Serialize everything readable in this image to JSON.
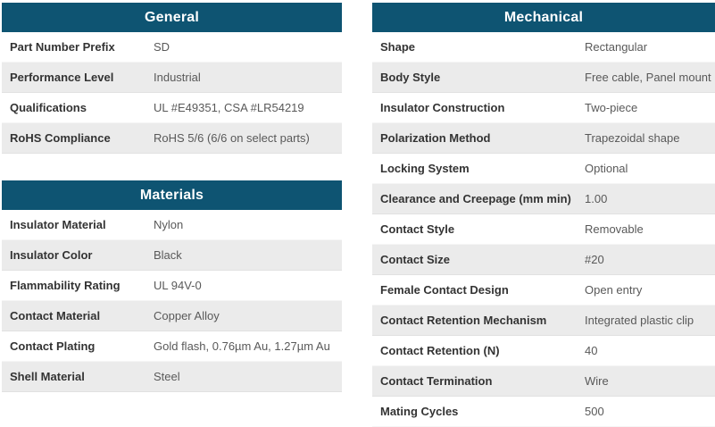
{
  "colors": {
    "header_bg": "#0e5472",
    "header_text": "#ffffff",
    "alt_row_bg": "#ebebeb",
    "label_color": "#333333",
    "value_color": "#595959"
  },
  "tables": {
    "general": {
      "title": "General",
      "rows": [
        {
          "label": "Part Number Prefix",
          "value": "SD"
        },
        {
          "label": "Performance Level",
          "value": "Industrial"
        },
        {
          "label": "Qualifications",
          "value": "UL #E49351, CSA #LR54219"
        },
        {
          "label": "RoHS Compliance",
          "value": "RoHS 5/6 (6/6 on select parts)"
        }
      ]
    },
    "materials": {
      "title": "Materials",
      "rows": [
        {
          "label": "Insulator Material",
          "value": "Nylon"
        },
        {
          "label": "Insulator Color",
          "value": "Black"
        },
        {
          "label": "Flammability Rating",
          "value": "UL 94V-0"
        },
        {
          "label": "Contact Material",
          "value": "Copper Alloy"
        },
        {
          "label": "Contact Plating",
          "value": "Gold flash, 0.76µm Au, 1.27µm Au"
        },
        {
          "label": "Shell Material",
          "value": "Steel"
        }
      ]
    },
    "mechanical": {
      "title": "Mechanical",
      "rows": [
        {
          "label": "Shape",
          "value": "Rectangular"
        },
        {
          "label": "Body Style",
          "value": "Free cable, Panel mount"
        },
        {
          "label": "Insulator Construction",
          "value": "Two-piece"
        },
        {
          "label": "Polarization Method",
          "value": "Trapezoidal shape"
        },
        {
          "label": "Locking System",
          "value": "Optional"
        },
        {
          "label": "Clearance and Creepage (mm min)",
          "value": "1.00"
        },
        {
          "label": "Contact Style",
          "value": "Removable"
        },
        {
          "label": "Contact Size",
          "value": "#20"
        },
        {
          "label": "Female Contact Design",
          "value": "Open entry"
        },
        {
          "label": "Contact Retention Mechanism",
          "value": "Integrated plastic clip"
        },
        {
          "label": "Contact Retention (N)",
          "value": "40"
        },
        {
          "label": "Contact Termination",
          "value": "Wire"
        },
        {
          "label": "Mating Cycles",
          "value": "500"
        }
      ]
    }
  }
}
